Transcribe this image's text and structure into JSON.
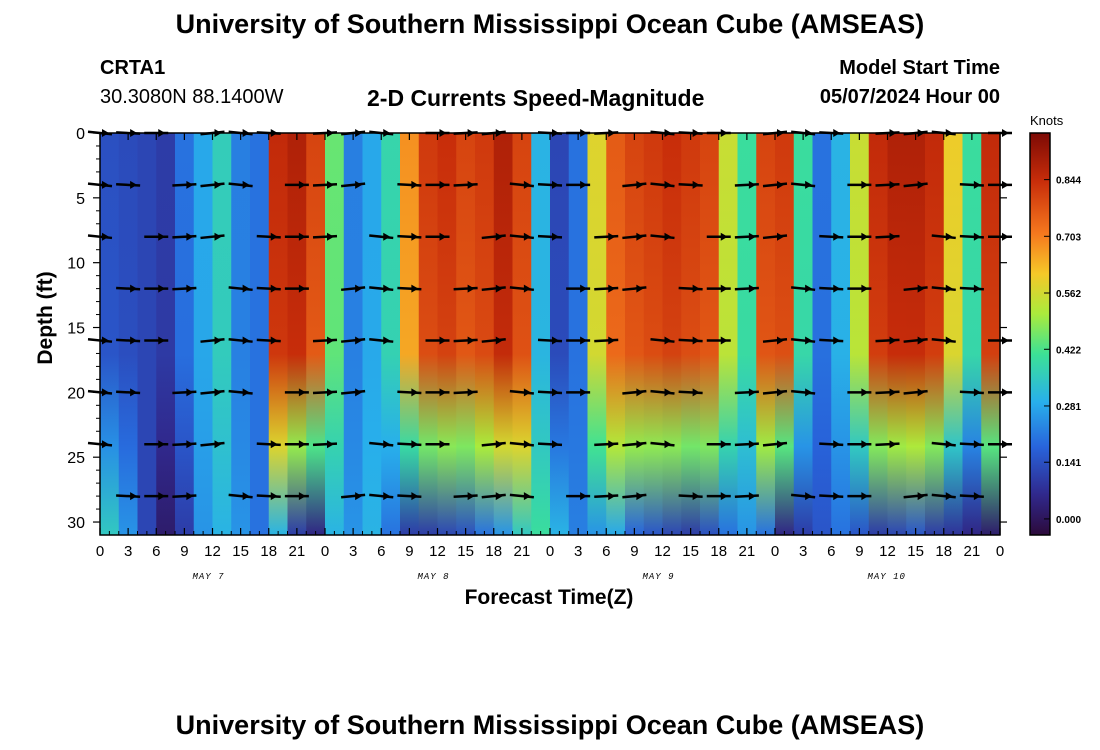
{
  "header": {
    "title": "University of Southern Mississippi Ocean Cube (AMSEAS)",
    "station_name": "CRTA1",
    "station_coords": "30.3080N  88.1400W",
    "chart_title": "2-D Currents Speed-Magnitude",
    "model_start_label": "Model Start Time",
    "model_start_value": "05/07/2024 Hour 00"
  },
  "footer": {
    "title": "University of Southern Mississippi Ocean Cube (AMSEAS)"
  },
  "chart_data": {
    "type": "heatmap",
    "title": "2-D Currents Speed-Magnitude",
    "xlabel": "Forecast Time(Z)",
    "ylabel": "Depth (ft)",
    "xlim": [
      0,
      96
    ],
    "ylim": [
      31,
      0
    ],
    "x_ticks": [
      0,
      3,
      6,
      9,
      12,
      15,
      18,
      21,
      24,
      27,
      30,
      33,
      36,
      39,
      42,
      45,
      48,
      51,
      54,
      57,
      60,
      63,
      66,
      69,
      72,
      75,
      78,
      81,
      84,
      87,
      90,
      93,
      96
    ],
    "x_tick_labels": [
      "0",
      "3",
      "6",
      "9",
      "12",
      "15",
      "18",
      "21",
      "0",
      "3",
      "6",
      "9",
      "12",
      "15",
      "18",
      "21",
      "0",
      "3",
      "6",
      "9",
      "12",
      "15",
      "18",
      "21",
      "0",
      "3",
      "6",
      "9",
      "12",
      "15",
      "18",
      "21",
      "0"
    ],
    "y_ticks": [
      0,
      5,
      10,
      15,
      20,
      25,
      30
    ],
    "y_tick_labels": [
      "0",
      "5",
      "10",
      "15",
      "20",
      "25",
      "30"
    ],
    "day_labels": [
      {
        "text": "MAY 7",
        "hour": 12
      },
      {
        "text": "MAY 8",
        "hour": 36
      },
      {
        "text": "MAY 9",
        "hour": 60
      },
      {
        "text": "MAY 10",
        "hour": 84
      }
    ],
    "colorbar": {
      "label": "Knots",
      "min": -0.04,
      "max": 0.96,
      "ticks": [
        0.0,
        0.141,
        0.281,
        0.422,
        0.562,
        0.703,
        0.844
      ],
      "tick_labels": [
        "0.000",
        "0.141",
        "0.281",
        "0.422",
        "0.562",
        "0.703",
        "0.844"
      ]
    },
    "speed_profile": {
      "hours": [
        0,
        2,
        4,
        6,
        8,
        10,
        12,
        14,
        16,
        18,
        20,
        22,
        24,
        26,
        28,
        30,
        32,
        34,
        36,
        38,
        40,
        42,
        44,
        46,
        48,
        50,
        52,
        54,
        56,
        58,
        60,
        62,
        64,
        66,
        68,
        70,
        72,
        74,
        76,
        78,
        80,
        82,
        84,
        86,
        88,
        90,
        92,
        94,
        96
      ],
      "surface_knots": [
        0.14,
        0.13,
        0.12,
        0.1,
        0.2,
        0.28,
        0.36,
        0.22,
        0.2,
        0.85,
        0.88,
        0.8,
        0.45,
        0.22,
        0.28,
        0.38,
        0.68,
        0.82,
        0.84,
        0.8,
        0.82,
        0.88,
        0.8,
        0.3,
        0.12,
        0.2,
        0.58,
        0.76,
        0.8,
        0.82,
        0.84,
        0.82,
        0.8,
        0.55,
        0.4,
        0.8,
        0.82,
        0.4,
        0.2,
        0.3,
        0.55,
        0.85,
        0.88,
        0.88,
        0.85,
        0.6,
        0.4,
        0.85,
        0.92
      ],
      "bottom_knots": [
        0.35,
        0.25,
        0.12,
        0.02,
        0.1,
        0.25,
        0.3,
        0.25,
        0.2,
        0.3,
        0.1,
        0.05,
        0.3,
        0.25,
        0.3,
        0.2,
        0.1,
        0.1,
        0.12,
        0.14,
        0.2,
        0.25,
        0.35,
        0.4,
        0.3,
        0.22,
        0.25,
        0.28,
        0.18,
        0.15,
        0.12,
        0.1,
        0.14,
        0.2,
        0.25,
        0.2,
        0.05,
        0.1,
        0.15,
        0.2,
        0.15,
        0.1,
        0.12,
        0.15,
        0.1,
        0.08,
        0.05,
        0.02,
        0.02
      ]
    },
    "vector_depths_ft": [
      0,
      4,
      8,
      12,
      16,
      20,
      24,
      28
    ],
    "vectors_note": "Current direction arrows at 3-hour intervals on each depth level (mostly east/west oriented)"
  }
}
